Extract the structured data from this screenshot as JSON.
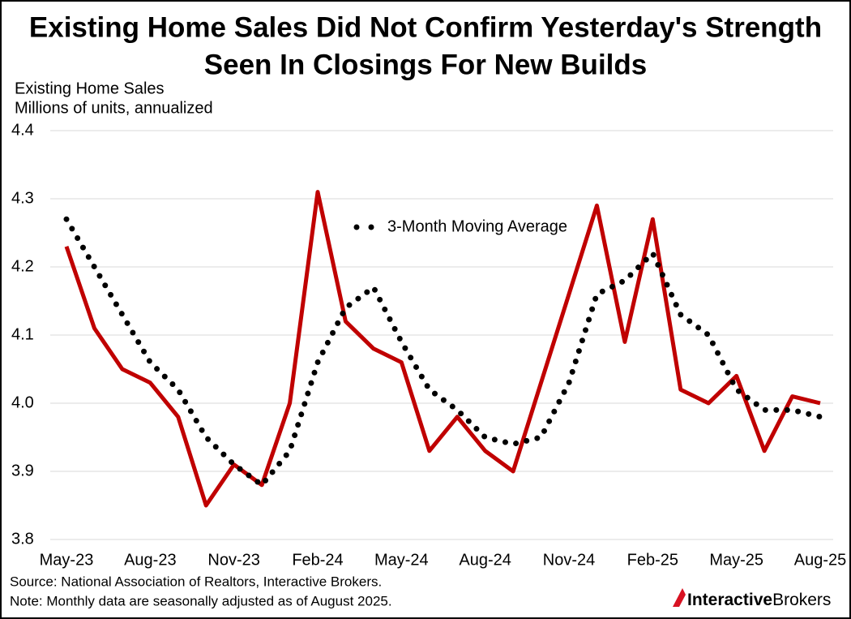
{
  "chart_data": {
    "type": "line",
    "title": [
      "Existing Home Sales Did Not Confirm Yesterday's Strength",
      "Seen In Closings For New Builds"
    ],
    "y_label": [
      "Existing Home Sales",
      "Millions of units, annualized"
    ],
    "categories": [
      "May-23",
      null,
      null,
      "Aug-23",
      null,
      null,
      "Nov-23",
      null,
      null,
      "Feb-24",
      null,
      null,
      "May-24",
      null,
      null,
      "Aug-24",
      null,
      null,
      "Nov-24",
      null,
      null,
      "Feb-25",
      null,
      null,
      "May-25",
      null,
      null,
      "Aug-25"
    ],
    "series": [
      {
        "color": "#c00000",
        "style": "solid",
        "values": [
          4.23,
          4.11,
          4.05,
          4.03,
          3.98,
          3.85,
          3.91,
          3.88,
          4.0,
          4.31,
          4.12,
          4.08,
          4.06,
          3.93,
          3.98,
          3.93,
          3.9,
          4.03,
          4.16,
          4.29,
          4.09,
          4.27,
          4.02,
          4.0,
          4.04,
          3.93,
          4.01,
          4.0
        ]
      },
      {
        "name": "3-Month Moving Average",
        "color": "#000000",
        "style": "dotted",
        "values": [
          4.27,
          4.2,
          4.13,
          4.06,
          4.02,
          3.95,
          3.91,
          3.88,
          3.93,
          4.06,
          4.14,
          4.17,
          4.09,
          4.02,
          3.99,
          3.95,
          3.94,
          3.95,
          4.03,
          4.16,
          4.18,
          4.22,
          4.13,
          4.1,
          4.02,
          3.99,
          3.99,
          3.98
        ]
      }
    ],
    "ylim": [
      3.8,
      4.4
    ],
    "yticks": [
      3.8,
      3.9,
      {
        "value": 4,
        "label": "4.0"
      },
      4.1,
      4.2,
      4.3,
      4.4
    ],
    "grid": true,
    "source": "Source: National Association of Realtors, Interactive Brokers.",
    "note": "Note: Monthly data are seasonally adjusted as of August 2025.",
    "logo": [
      "Interactive",
      "Brokers"
    ]
  }
}
